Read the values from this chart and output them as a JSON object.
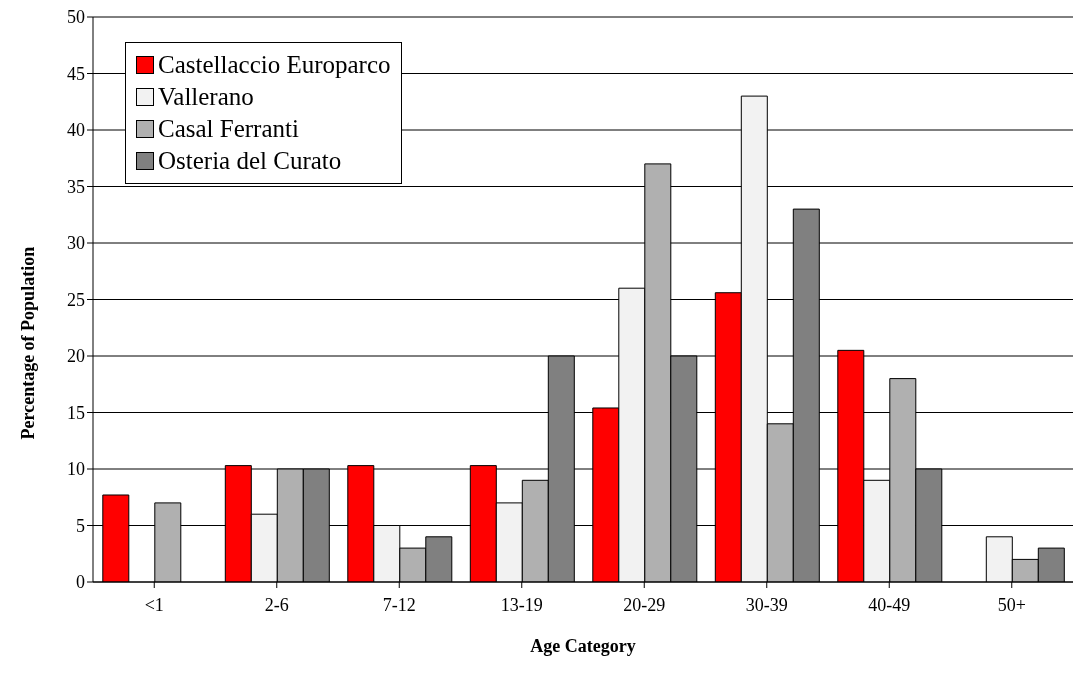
{
  "chart_data": {
    "type": "bar",
    "xlabel": "Age Category",
    "ylabel": "Percentage of Population",
    "categories": [
      "<1",
      "2-6",
      "7-12",
      "13-19",
      "20-29",
      "30-39",
      "40-49",
      "50+"
    ],
    "series": [
      {
        "name": "Castellaccio Europarco",
        "color": "#ff0000",
        "values": [
          7.7,
          10.3,
          10.3,
          10.3,
          15.4,
          25.6,
          20.5,
          0
        ]
      },
      {
        "name": "Vallerano",
        "color": "#f2f2f2",
        "values": [
          0,
          6,
          5,
          7,
          26,
          43,
          9,
          4
        ]
      },
      {
        "name": "Casal Ferranti",
        "color": "#b0b0b0",
        "values": [
          7,
          10,
          3,
          9,
          37,
          14,
          18,
          2
        ]
      },
      {
        "name": "Osteria del Curato",
        "color": "#808080",
        "values": [
          0,
          10,
          4,
          20,
          20,
          33,
          10,
          3
        ]
      }
    ],
    "ylim": [
      0,
      50
    ],
    "yticks": [
      0,
      5,
      10,
      15,
      20,
      25,
      30,
      35,
      40,
      45,
      50
    ],
    "grid": "y",
    "legend": "top left"
  }
}
